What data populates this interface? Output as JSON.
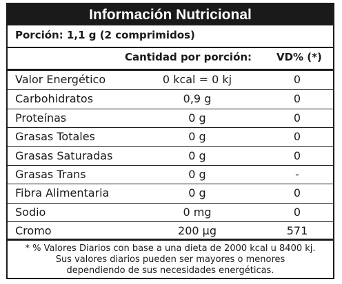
{
  "title": "Información Nutricional",
  "portion": "Porción: 1,1 g (2 comprimidos)",
  "headers": {
    "quantity": "Cantidad por porción:",
    "vd": "VD% (*)"
  },
  "rows": [
    {
      "name": "Valor Energético",
      "qty": "0 kcal = 0 kj",
      "vd": "0"
    },
    {
      "name": "Carbohidratos",
      "qty": "0,9 g",
      "vd": "0"
    },
    {
      "name": "Proteínas",
      "qty": "0 g",
      "vd": "0"
    },
    {
      "name": "Grasas Totales",
      "qty": "0 g",
      "vd": "0"
    },
    {
      "name": "Grasas Saturadas",
      "qty": "0 g",
      "vd": "0"
    },
    {
      "name": "Grasas Trans",
      "qty": "0 g",
      "vd": "-"
    },
    {
      "name": "Fibra Alimentaria",
      "qty": "0 g",
      "vd": "0"
    },
    {
      "name": "Sodio",
      "qty": "0 mg",
      "vd": "0"
    },
    {
      "name": "Cromo",
      "qty": "200 µg",
      "vd": "571"
    }
  ],
  "footnote": {
    "line1": "* % Valores Diarios con base a una dieta de 2000 kcal u 8400 kj.",
    "line2": "Sus valores diarios pueden ser mayores o menores",
    "line3": "dependiendo de sus necesidades energéticas."
  }
}
